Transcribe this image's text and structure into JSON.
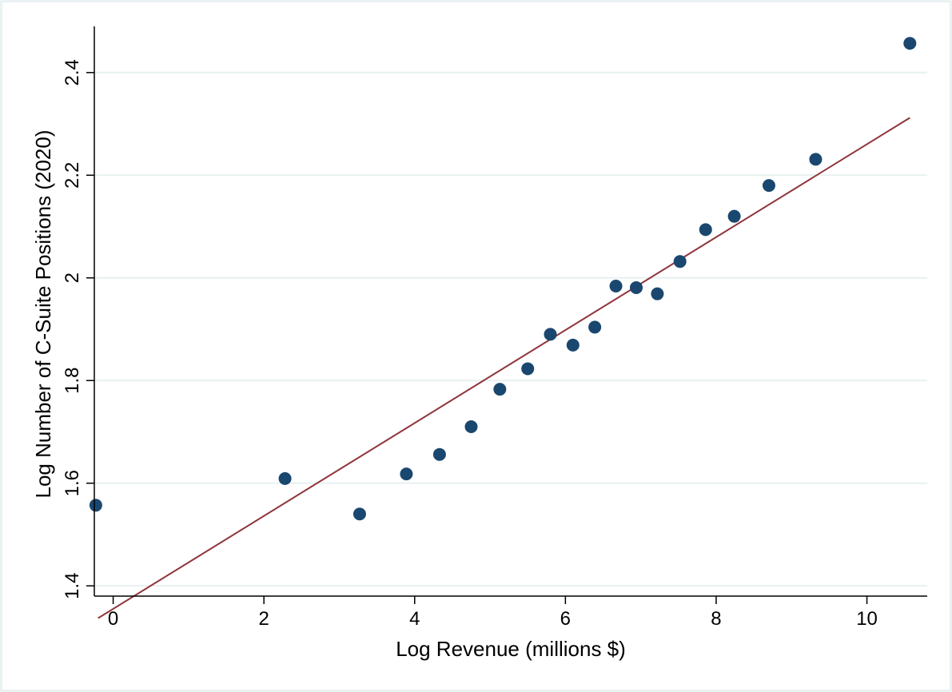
{
  "chart_data": {
    "type": "scatter",
    "title": "",
    "xlabel": "Log Revenue (millions $)",
    "ylabel": "Log Number of C-Suite Positions (2020)",
    "xlim": [
      -0.25,
      10.8
    ],
    "ylim": [
      1.38,
      2.49
    ],
    "xticks": [
      0,
      2,
      4,
      6,
      8,
      10
    ],
    "yticks": [
      1.4,
      1.6,
      1.8,
      2.0,
      2.2,
      2.4
    ],
    "xtick_labels": [
      "0",
      "2",
      "4",
      "6",
      "8",
      "10"
    ],
    "ytick_labels": [
      "1.4",
      "1.6",
      "1.8",
      "2",
      "2.2",
      "2.4"
    ],
    "grid": true,
    "series": [
      {
        "type": "scatter",
        "color": "#1a476f",
        "points": [
          {
            "x": -0.23,
            "y": 1.557
          },
          {
            "x": 2.28,
            "y": 1.609
          },
          {
            "x": 3.27,
            "y": 1.54
          },
          {
            "x": 3.89,
            "y": 1.618
          },
          {
            "x": 4.33,
            "y": 1.656
          },
          {
            "x": 4.75,
            "y": 1.71
          },
          {
            "x": 5.13,
            "y": 1.783
          },
          {
            "x": 5.5,
            "y": 1.823
          },
          {
            "x": 5.8,
            "y": 1.89
          },
          {
            "x": 6.1,
            "y": 1.869
          },
          {
            "x": 6.39,
            "y": 1.904
          },
          {
            "x": 6.67,
            "y": 1.984
          },
          {
            "x": 6.94,
            "y": 1.981
          },
          {
            "x": 7.22,
            "y": 1.969
          },
          {
            "x": 7.52,
            "y": 2.032
          },
          {
            "x": 7.86,
            "y": 2.094
          },
          {
            "x": 8.24,
            "y": 2.12
          },
          {
            "x": 8.7,
            "y": 2.18
          },
          {
            "x": 9.32,
            "y": 2.231
          },
          {
            "x": 10.57,
            "y": 2.457
          }
        ]
      },
      {
        "type": "line",
        "color": "#90353b",
        "x": [
          -0.2,
          10.57
        ],
        "y": [
          1.337,
          2.312
        ]
      }
    ]
  }
}
